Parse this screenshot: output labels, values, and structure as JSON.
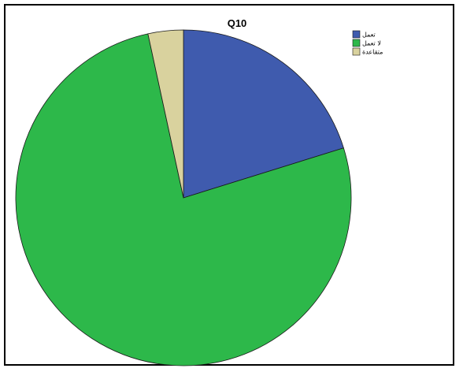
{
  "chart_data": {
    "type": "pie",
    "title": "Q10",
    "legend_position": "top-right",
    "start_angle": "12 o'clock",
    "direction": "clockwise",
    "slices": [
      {
        "label": "تعمل",
        "value": 20.2,
        "color": "#3F5BAE"
      },
      {
        "label": "لا تعمل",
        "value": 76.4,
        "color": "#2DB84A"
      },
      {
        "label": "متقاعدة",
        "value": 3.4,
        "color": "#D9D29E"
      }
    ]
  }
}
